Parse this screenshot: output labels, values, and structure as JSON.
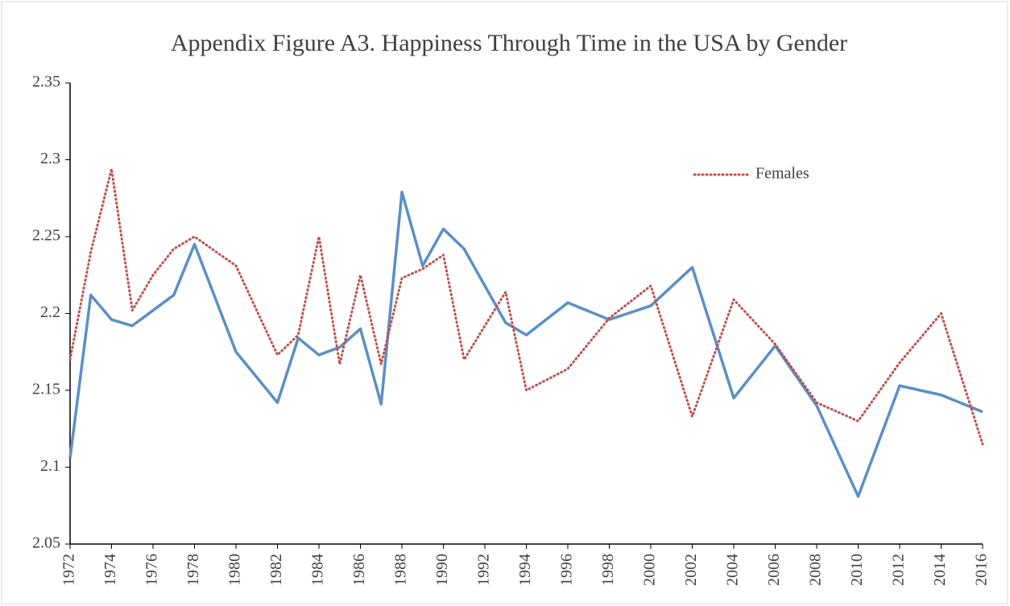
{
  "chart_data": {
    "type": "line",
    "title": "Appendix Figure A3.  Happiness Through Time in the USA by Gender",
    "x": [
      1972,
      1973,
      1974,
      1975,
      1976,
      1977,
      1978,
      1980,
      1982,
      1983,
      1984,
      1985,
      1986,
      1987,
      1988,
      1989,
      1990,
      1991,
      1993,
      1994,
      1996,
      1998,
      2000,
      2002,
      2004,
      2006,
      2008,
      2010,
      2012,
      2014,
      2016
    ],
    "series": [
      {
        "color": "#5b8fc7",
        "style": "solid",
        "values": [
          2.106,
          2.212,
          2.196,
          2.192,
          2.202,
          2.212,
          2.245,
          2.175,
          2.142,
          2.184,
          2.173,
          2.178,
          2.19,
          2.141,
          2.279,
          2.231,
          2.255,
          2.242,
          2.194,
          2.186,
          2.207,
          2.196,
          2.205,
          2.23,
          2.145,
          2.179,
          2.14,
          2.081,
          2.153,
          2.147,
          2.136
        ]
      },
      {
        "name": "Females",
        "color": "#c0504d",
        "style": "dotted",
        "values": [
          2.17,
          2.24,
          2.294,
          2.202,
          2.225,
          2.242,
          2.25,
          2.231,
          2.173,
          2.186,
          2.25,
          2.167,
          2.225,
          2.167,
          2.223,
          2.229,
          2.238,
          2.17,
          2.214,
          2.15,
          2.164,
          2.197,
          2.218,
          2.133,
          2.209,
          2.18,
          2.142,
          2.13,
          2.168,
          2.2,
          2.115
        ]
      }
    ],
    "xlim": [
      1972,
      2016
    ],
    "xticks": [
      1972,
      1974,
      1976,
      1978,
      1980,
      1982,
      1984,
      1986,
      1988,
      1990,
      1992,
      1994,
      1996,
      1998,
      2000,
      2002,
      2004,
      2006,
      2008,
      2010,
      2012,
      2014,
      2016
    ],
    "ylim": [
      2.05,
      2.35
    ],
    "yticks": [
      2.05,
      2.1,
      2.15,
      2.2,
      2.25,
      2.3,
      2.35
    ],
    "grid": false,
    "legend": "upper right"
  }
}
